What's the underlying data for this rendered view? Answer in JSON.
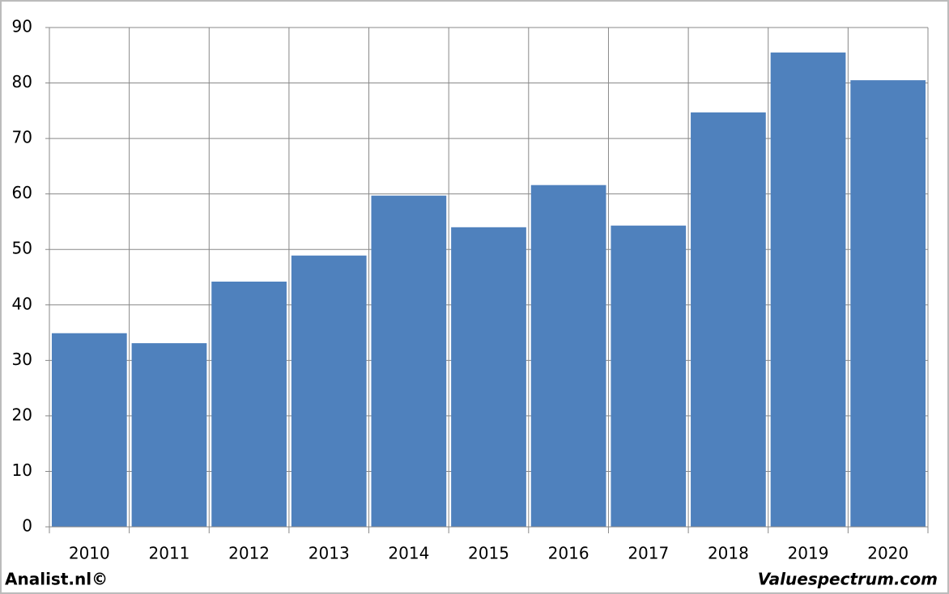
{
  "chart_data": {
    "type": "bar",
    "categories": [
      "2010",
      "2011",
      "2012",
      "2013",
      "2014",
      "2015",
      "2016",
      "2017",
      "2018",
      "2019",
      "2020"
    ],
    "values": [
      34.9,
      33.1,
      44.2,
      48.9,
      59.7,
      54.0,
      61.6,
      54.3,
      74.7,
      85.5,
      80.5
    ],
    "color": "#4f81bd",
    "ylim": [
      0,
      90
    ],
    "yticks": [
      0,
      10,
      20,
      30,
      40,
      50,
      60,
      70,
      80,
      90
    ],
    "grid": true,
    "credit_left": "Analist.nl©",
    "credit_right": "Valuespectrum.com"
  }
}
